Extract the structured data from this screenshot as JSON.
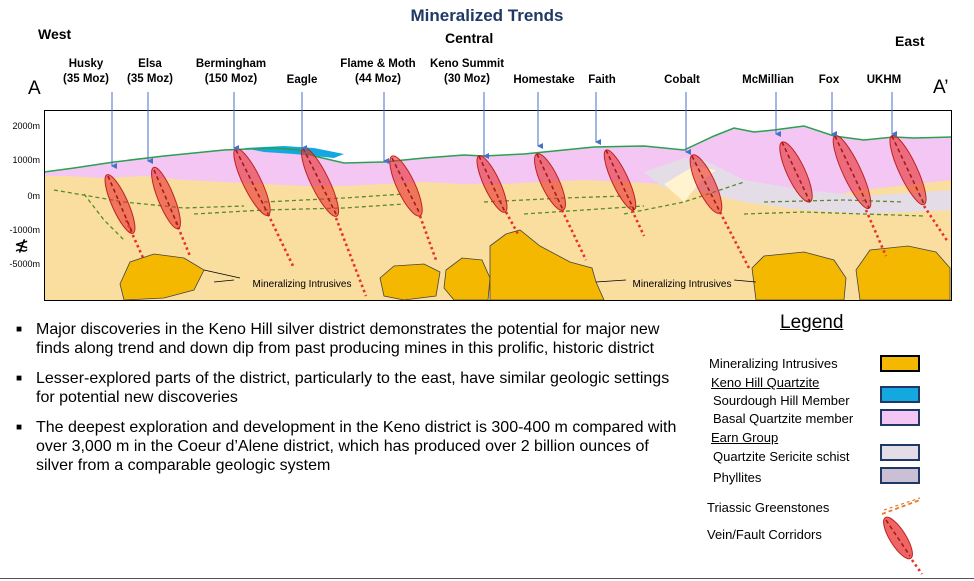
{
  "title": "Mineralized Trends",
  "regions": {
    "west": "West",
    "central": "Central",
    "east": "East"
  },
  "section_ends": {
    "start": "A",
    "end": "A’"
  },
  "mines": [
    {
      "name": "Husky",
      "size": "(35 Moz)"
    },
    {
      "name": "Elsa",
      "size": "(35 Moz)"
    },
    {
      "name": "Bermingham",
      "size": "(150 Moz)"
    },
    {
      "name": "Eagle",
      "size": ""
    },
    {
      "name": "Flame & Moth",
      "size": "(44 Moz)"
    },
    {
      "name": "Keno Summit",
      "size": "(30 Moz)"
    },
    {
      "name": "Homestake",
      "size": ""
    },
    {
      "name": "Faith",
      "size": ""
    },
    {
      "name": "Cobalt",
      "size": ""
    },
    {
      "name": "McMillian",
      "size": ""
    },
    {
      "name": "Fox",
      "size": ""
    },
    {
      "name": "UKHM",
      "size": ""
    }
  ],
  "elevation_axis": [
    "2000m",
    "1000m",
    "0m",
    "-1000m",
    "-5000m"
  ],
  "axis_break_symbol": "≴",
  "intrusive_labels": [
    "Mineralizing Intrusives",
    "Mineralizing Intrusives"
  ],
  "bullets": [
    "Major discoveries in the Keno Hill silver district demonstrates the potential for major new finds along trend and down dip from past producing mines in this prolific, historic district",
    "Lesser-explored parts of the district, particularly to the east, have similar geologic settings for potential new discoveries",
    "The deepest exploration and development in the Keno district is 300-400 m compared with over 3,000 m in the Coeur d’Alene district, which has produced over 2 billion ounces of silver from a comparable geologic system"
  ],
  "bullet_marker": "■",
  "legend": {
    "title": "Legend",
    "mineralizing_intrusives": "Mineralizing Intrusives",
    "keno_hill_quartzite": "Keno Hill Quartzite",
    "sourdough_hill": "Sourdough Hill Member",
    "basal_quartzite": "Basal Quartzite member",
    "earn_group": "Earn Group",
    "quartzite_sericite": "Quartzite Sericite schist",
    "phyllites": "Phyllites",
    "triassic": "Triassic Greenstones",
    "vein": "Vein/Fault Corridors"
  },
  "colors": {
    "intrusive": "#f5b800",
    "sourdough": "#14a8e0",
    "basal_quartzite": "#f3c6f3",
    "quartzite_sericite": "#e4dde7",
    "phyllites": "#cbbfd6",
    "background_fill": "#f9dea0",
    "vein": "#e8312f",
    "greenstone_line": "#5a8a2a",
    "topo_line": "#2aa050",
    "title": "#1f3864"
  }
}
